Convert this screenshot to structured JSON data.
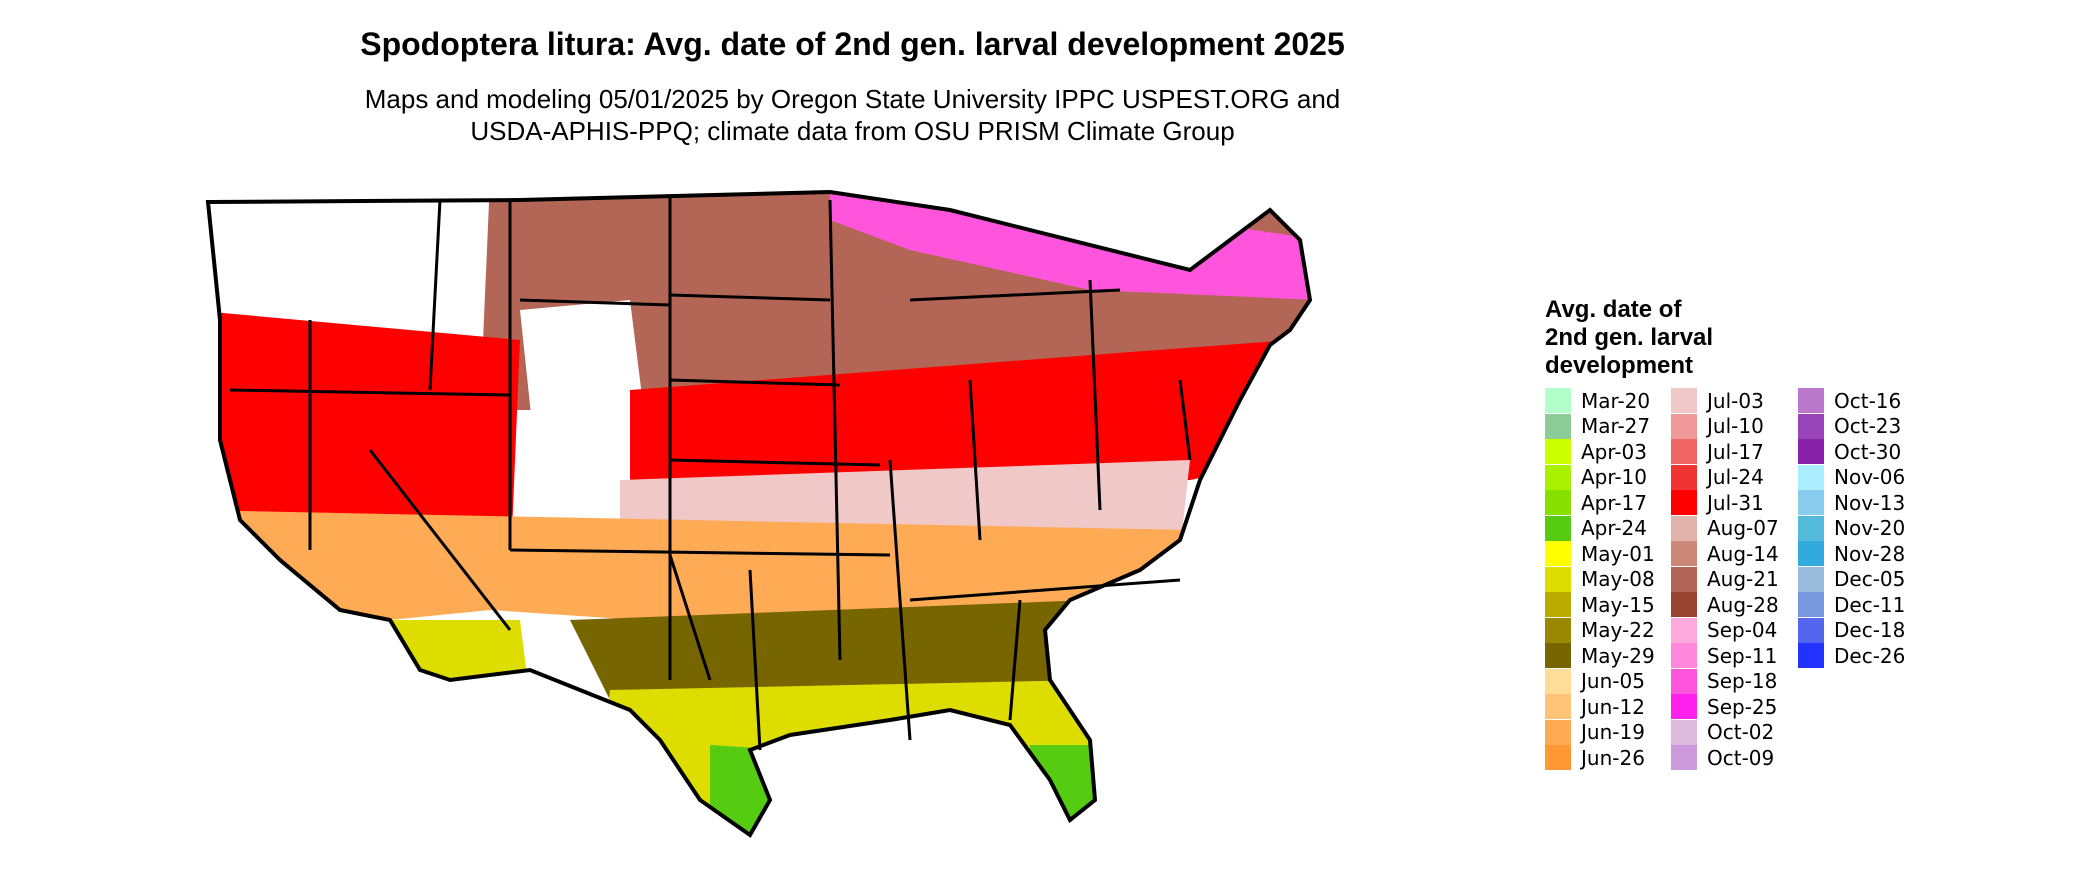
{
  "title": "Spodoptera litura: Avg. date of 2nd gen. larval development 2025",
  "subtitle_line1": "Maps and modeling 05/01/2025 by Oregon State University IPPC USPEST.ORG and",
  "subtitle_line2": "USDA-APHIS-PPQ; climate data from OSU PRISM Climate Group",
  "legend": {
    "title_lines": [
      "Avg. date of",
      "2nd gen. larval",
      "development"
    ],
    "items": [
      {
        "label": "Mar-20",
        "color": "#b3ffcc"
      },
      {
        "label": "Mar-27",
        "color": "#8ccc99"
      },
      {
        "label": "Apr-03",
        "color": "#ccff00"
      },
      {
        "label": "Apr-10",
        "color": "#aaf000"
      },
      {
        "label": "Apr-17",
        "color": "#88e000"
      },
      {
        "label": "Apr-24",
        "color": "#55cc11"
      },
      {
        "label": "May-01",
        "color": "#ffff00"
      },
      {
        "label": "May-08",
        "color": "#dddd00"
      },
      {
        "label": "May-15",
        "color": "#bbaa00"
      },
      {
        "label": "May-22",
        "color": "#998800"
      },
      {
        "label": "May-29",
        "color": "#776600"
      },
      {
        "label": "Jun-05",
        "color": "#ffdd99"
      },
      {
        "label": "Jun-12",
        "color": "#ffc477"
      },
      {
        "label": "Jun-19",
        "color": "#ffaa55"
      },
      {
        "label": "Jun-26",
        "color": "#ff9933"
      },
      {
        "label": "Jul-03",
        "color": "#f0c8c8"
      },
      {
        "label": "Jul-10",
        "color": "#f09999"
      },
      {
        "label": "Jul-17",
        "color": "#f06666"
      },
      {
        "label": "Jul-24",
        "color": "#f03333"
      },
      {
        "label": "Jul-31",
        "color": "#ff0000"
      },
      {
        "label": "Aug-07",
        "color": "#e0b4aa"
      },
      {
        "label": "Aug-14",
        "color": "#cc8877"
      },
      {
        "label": "Aug-21",
        "color": "#b36655"
      },
      {
        "label": "Aug-28",
        "color": "#994433"
      },
      {
        "label": "Sep-04",
        "color": "#ffaadd"
      },
      {
        "label": "Sep-11",
        "color": "#ff88dd"
      },
      {
        "label": "Sep-18",
        "color": "#ff55dd"
      },
      {
        "label": "Sep-25",
        "color": "#ff22ee"
      },
      {
        "label": "Oct-02",
        "color": "#ddbbdd"
      },
      {
        "label": "Oct-09",
        "color": "#cc99dd"
      },
      {
        "label": "Oct-16",
        "color": "#bb77cc"
      },
      {
        "label": "Oct-23",
        "color": "#9944bb"
      },
      {
        "label": "Oct-30",
        "color": "#8822aa"
      },
      {
        "label": "Nov-06",
        "color": "#aaeeff"
      },
      {
        "label": "Nov-13",
        "color": "#88ccee"
      },
      {
        "label": "Nov-20",
        "color": "#55bbdd"
      },
      {
        "label": "Nov-28",
        "color": "#33aadd"
      },
      {
        "label": "Dec-05",
        "color": "#99bbdd"
      },
      {
        "label": "Dec-11",
        "color": "#7799dd"
      },
      {
        "label": "Dec-18",
        "color": "#5566ee"
      },
      {
        "label": "Dec-26",
        "color": "#2233ff"
      }
    ]
  },
  "map": {
    "outline_color": "#000000",
    "zones": [
      {
        "name": "northwest-mountains",
        "color": "#ffffff"
      },
      {
        "name": "northern-plains",
        "color": "#b36655"
      },
      {
        "name": "great-lakes-north",
        "color": "#ff55dd"
      },
      {
        "name": "central-belt",
        "color": "#ff0000"
      },
      {
        "name": "mid-south",
        "color": "#f0c8c8"
      },
      {
        "name": "southern-belt",
        "color": "#ffaa55"
      },
      {
        "name": "deep-south",
        "color": "#776600"
      },
      {
        "name": "gulf-coast",
        "color": "#dddd00"
      },
      {
        "name": "south-tips",
        "color": "#55cc11"
      }
    ]
  }
}
